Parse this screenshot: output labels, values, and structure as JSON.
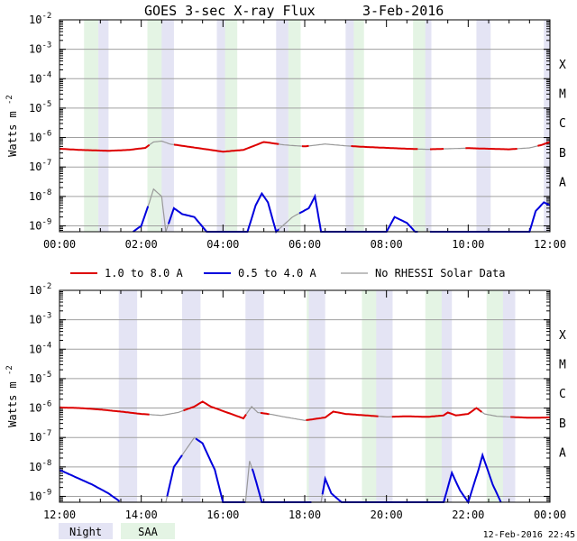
{
  "chart_data": {
    "type": "line",
    "title": "GOES 3-sec X-ray Flux",
    "date": "3-Feb-2016",
    "ylabel": "Watts m",
    "ylabel_sup": "-2",
    "y_tick_base": "10",
    "y_tick_exponents": [
      "-2",
      "-3",
      "-4",
      "-5",
      "-6",
      "-7",
      "-8",
      "-9"
    ],
    "flare_classes": [
      {
        "label": "X",
        "level": -4
      },
      {
        "label": "M",
        "level": -5
      },
      {
        "label": "C",
        "level": -6
      },
      {
        "label": "B",
        "level": -7
      },
      {
        "label": "A",
        "level": -8
      }
    ],
    "legend": [
      {
        "label": "1.0 to 8.0 A",
        "color": "#dd0000"
      },
      {
        "label": "0.5 to 4.0 A",
        "color": "#0000dd"
      },
      {
        "label": "No RHESSI Solar Data",
        "color": "#999999"
      }
    ],
    "bottom_legend": [
      {
        "label": "Night",
        "color": "#e4e4f4"
      },
      {
        "label": "SAA",
        "color": "#e4f4e4"
      }
    ],
    "timestamp": "12-Feb-2016 22:45",
    "panels": [
      {
        "xlim_hours": [
          0,
          12
        ],
        "ylim_log10": [
          -9.2,
          -2
        ],
        "x_tick_labels": [
          "00:00",
          "02:00",
          "04:00",
          "06:00",
          "08:00",
          "10:00",
          "12:00"
        ],
        "night": [
          [
            0.95,
            1.2
          ],
          [
            2.3,
            2.8
          ],
          [
            3.85,
            4.3
          ],
          [
            5.3,
            5.6
          ],
          [
            7.0,
            7.3
          ],
          [
            8.8,
            9.1
          ],
          [
            10.2,
            10.55
          ],
          [
            11.85,
            12.0
          ]
        ],
        "saa": [
          [
            0.6,
            0.95
          ],
          [
            2.15,
            2.5
          ],
          [
            4.05,
            4.35
          ],
          [
            5.6,
            5.9
          ],
          [
            7.2,
            7.45
          ],
          [
            8.65,
            8.95
          ]
        ],
        "long_channel": [
          {
            "t": 0.0,
            "v": -6.38
          },
          {
            "t": 0.5,
            "v": -6.42
          },
          {
            "t": 1.2,
            "v": -6.45
          },
          {
            "t": 1.7,
            "v": -6.42
          },
          {
            "t": 2.1,
            "v": -6.35
          },
          {
            "t": 2.3,
            "v": -6.15
          },
          {
            "t": 2.5,
            "v": -6.12
          },
          {
            "t": 2.7,
            "v": -6.22
          },
          {
            "t": 3.0,
            "v": -6.28
          },
          {
            "t": 3.5,
            "v": -6.38
          },
          {
            "t": 4.0,
            "v": -6.48
          },
          {
            "t": 4.5,
            "v": -6.42
          },
          {
            "t": 5.0,
            "v": -6.15
          },
          {
            "t": 5.5,
            "v": -6.25
          },
          {
            "t": 6.0,
            "v": -6.3
          },
          {
            "t": 6.5,
            "v": -6.22
          },
          {
            "t": 7.0,
            "v": -6.28
          },
          {
            "t": 7.5,
            "v": -6.32
          },
          {
            "t": 8.0,
            "v": -6.35
          },
          {
            "t": 8.5,
            "v": -6.38
          },
          {
            "t": 9.0,
            "v": -6.4
          },
          {
            "t": 9.5,
            "v": -6.38
          },
          {
            "t": 10.0,
            "v": -6.36
          },
          {
            "t": 10.5,
            "v": -6.38
          },
          {
            "t": 11.0,
            "v": -6.4
          },
          {
            "t": 11.5,
            "v": -6.35
          },
          {
            "t": 11.8,
            "v": -6.25
          },
          {
            "t": 12.0,
            "v": -6.15
          }
        ],
        "long_gaps": [
          [
            2.2,
            2.8
          ],
          [
            5.35,
            5.9
          ],
          [
            6.1,
            7.1
          ],
          [
            8.75,
            9.05
          ],
          [
            9.4,
            9.9
          ],
          [
            11.2,
            11.7
          ]
        ],
        "short_channel": [
          {
            "t": 1.8,
            "v": -9.2
          },
          {
            "t": 2.0,
            "v": -9.0
          },
          {
            "t": 2.2,
            "v": -8.2
          },
          {
            "t": 2.3,
            "v": -7.75
          },
          {
            "t": 2.5,
            "v": -8.0
          },
          {
            "t": 2.6,
            "v": -9.2
          },
          {
            "t": 2.8,
            "v": -8.4
          },
          {
            "t": 3.0,
            "v": -8.6
          },
          {
            "t": 3.3,
            "v": -8.7
          },
          {
            "t": 3.6,
            "v": -9.2
          },
          {
            "t": 4.6,
            "v": -9.2
          },
          {
            "t": 4.8,
            "v": -8.3
          },
          {
            "t": 4.95,
            "v": -7.9
          },
          {
            "t": 5.1,
            "v": -8.2
          },
          {
            "t": 5.3,
            "v": -9.2
          },
          {
            "t": 5.7,
            "v": -8.7
          },
          {
            "t": 6.1,
            "v": -8.4
          },
          {
            "t": 6.25,
            "v": -8.0
          },
          {
            "t": 6.4,
            "v": -9.2
          },
          {
            "t": 8.0,
            "v": -9.2
          },
          {
            "t": 8.2,
            "v": -8.7
          },
          {
            "t": 8.5,
            "v": -8.9
          },
          {
            "t": 8.7,
            "v": -9.2
          },
          {
            "t": 11.5,
            "v": -9.2
          },
          {
            "t": 11.65,
            "v": -8.5
          },
          {
            "t": 11.85,
            "v": -8.2
          },
          {
            "t": 12.0,
            "v": -8.3
          }
        ],
        "short_gaps": [
          [
            2.15,
            2.65
          ],
          [
            5.35,
            5.85
          ],
          [
            8.75,
            9.05
          ]
        ]
      },
      {
        "xlim_hours": [
          12,
          24
        ],
        "ylim_log10": [
          -9.2,
          -2
        ],
        "x_tick_labels": [
          "12:00",
          "14:00",
          "16:00",
          "18:00",
          "20:00",
          "22:00",
          "00:00"
        ],
        "night": [
          [
            13.45,
            13.9
          ],
          [
            15.0,
            15.45
          ],
          [
            16.55,
            17.0
          ],
          [
            18.1,
            18.5
          ],
          [
            19.7,
            20.15
          ],
          [
            21.3,
            21.6
          ],
          [
            22.75,
            23.15
          ]
        ],
        "saa": [
          [
            18.05,
            18.1
          ],
          [
            19.4,
            19.75
          ],
          [
            20.95,
            21.35
          ],
          [
            22.45,
            22.85
          ]
        ],
        "long_channel": [
          {
            "t": 12.0,
            "v": -5.98
          },
          {
            "t": 12.5,
            "v": -6.0
          },
          {
            "t": 13.0,
            "v": -6.05
          },
          {
            "t": 13.5,
            "v": -6.12
          },
          {
            "t": 14.0,
            "v": -6.2
          },
          {
            "t": 14.5,
            "v": -6.25
          },
          {
            "t": 14.9,
            "v": -6.15
          },
          {
            "t": 15.3,
            "v": -5.95
          },
          {
            "t": 15.5,
            "v": -5.78
          },
          {
            "t": 15.7,
            "v": -5.95
          },
          {
            "t": 16.0,
            "v": -6.1
          },
          {
            "t": 16.5,
            "v": -6.35
          },
          {
            "t": 16.7,
            "v": -5.95
          },
          {
            "t": 16.85,
            "v": -6.15
          },
          {
            "t": 17.2,
            "v": -6.22
          },
          {
            "t": 17.5,
            "v": -6.3
          },
          {
            "t": 18.0,
            "v": -6.42
          },
          {
            "t": 18.5,
            "v": -6.32
          },
          {
            "t": 18.7,
            "v": -6.12
          },
          {
            "t": 19.0,
            "v": -6.2
          },
          {
            "t": 19.5,
            "v": -6.25
          },
          {
            "t": 20.0,
            "v": -6.3
          },
          {
            "t": 20.5,
            "v": -6.28
          },
          {
            "t": 21.0,
            "v": -6.3
          },
          {
            "t": 21.4,
            "v": -6.25
          },
          {
            "t": 21.5,
            "v": -6.15
          },
          {
            "t": 21.7,
            "v": -6.25
          },
          {
            "t": 22.0,
            "v": -6.2
          },
          {
            "t": 22.2,
            "v": -6.0
          },
          {
            "t": 22.4,
            "v": -6.2
          },
          {
            "t": 22.7,
            "v": -6.28
          },
          {
            "t": 23.0,
            "v": -6.3
          },
          {
            "t": 23.5,
            "v": -6.33
          },
          {
            "t": 24.0,
            "v": -6.32
          }
        ],
        "long_gaps": [
          [
            14.2,
            15.0
          ],
          [
            16.55,
            16.9
          ],
          [
            17.1,
            18.0
          ],
          [
            19.8,
            20.1
          ],
          [
            22.3,
            23.0
          ]
        ],
        "short_channel": [
          {
            "t": 12.0,
            "v": -8.1
          },
          {
            "t": 12.4,
            "v": -8.35
          },
          {
            "t": 12.8,
            "v": -8.6
          },
          {
            "t": 13.2,
            "v": -8.9
          },
          {
            "t": 13.5,
            "v": -9.2
          },
          {
            "t": 14.6,
            "v": -9.2
          },
          {
            "t": 14.8,
            "v": -8.0
          },
          {
            "t": 15.0,
            "v": -7.6
          },
          {
            "t": 15.3,
            "v": -7.0
          },
          {
            "t": 15.5,
            "v": -7.2
          },
          {
            "t": 15.8,
            "v": -8.1
          },
          {
            "t": 16.0,
            "v": -9.2
          },
          {
            "t": 16.55,
            "v": -9.2
          },
          {
            "t": 16.65,
            "v": -7.8
          },
          {
            "t": 16.75,
            "v": -8.2
          },
          {
            "t": 16.95,
            "v": -9.2
          },
          {
            "t": 18.4,
            "v": -9.2
          },
          {
            "t": 18.5,
            "v": -8.4
          },
          {
            "t": 18.65,
            "v": -8.9
          },
          {
            "t": 18.9,
            "v": -9.2
          },
          {
            "t": 21.4,
            "v": -9.2
          },
          {
            "t": 21.6,
            "v": -8.2
          },
          {
            "t": 21.8,
            "v": -8.8
          },
          {
            "t": 22.0,
            "v": -9.2
          },
          {
            "t": 22.25,
            "v": -8.1
          },
          {
            "t": 22.35,
            "v": -7.6
          },
          {
            "t": 22.6,
            "v": -8.6
          },
          {
            "t": 22.8,
            "v": -9.2
          }
        ],
        "short_gaps": [
          [
            13.45,
            14.6
          ],
          [
            15.0,
            15.3
          ],
          [
            16.55,
            16.7
          ],
          [
            18.15,
            18.4
          ]
        ]
      }
    ]
  }
}
